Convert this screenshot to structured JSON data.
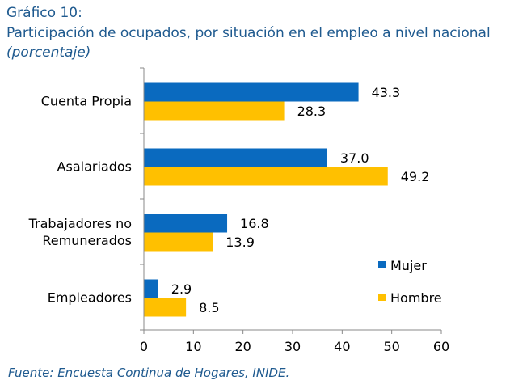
{
  "chart_data": {
    "type": "bar",
    "orientation": "horizontal",
    "title": "Gráfico 10:",
    "subtitle": "Participación de ocupados,  por situación en el empleo a nivel nacional",
    "unit_note": "(porcentaje)",
    "categories": [
      [
        "Cuenta Propia"
      ],
      [
        "Asalariados"
      ],
      [
        "Trabajadores no",
        "Remunerados"
      ],
      [
        "Empleadores"
      ]
    ],
    "series": [
      {
        "name": "Mujer",
        "color": "#0a6abf",
        "values": [
          43.3,
          37.0,
          16.8,
          2.9
        ],
        "labels": [
          "43.3",
          "37.0",
          "16.8",
          "2.9"
        ]
      },
      {
        "name": "Hombre",
        "color": "#ffc000",
        "values": [
          28.3,
          49.2,
          13.9,
          8.5
        ],
        "labels": [
          "28.3",
          "49.2",
          "13.9",
          "8.5"
        ]
      }
    ],
    "xlim": [
      0,
      60
    ],
    "xticks": [
      0,
      10,
      20,
      30,
      40,
      50,
      60
    ],
    "legend_position": "right",
    "grid": false
  },
  "source": "Fuente: Encuesta Continua de Hogares, INIDE."
}
